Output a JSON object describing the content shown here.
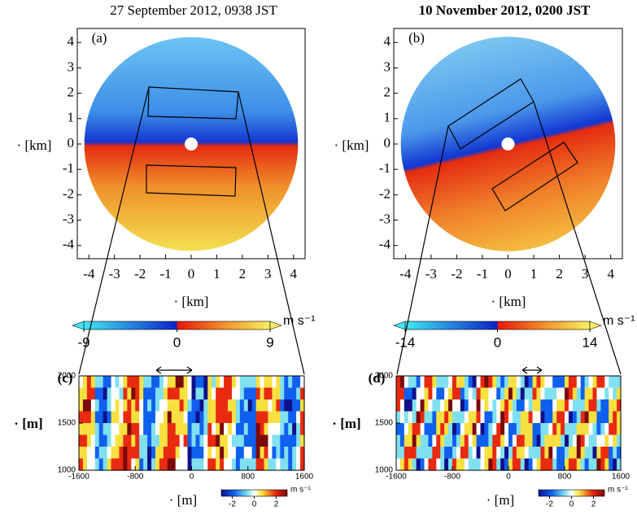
{
  "chart_data": [
    {
      "type": "image",
      "title": "27 September 2012, 0938 JST",
      "panel_label": "(a)",
      "xlabel": "· [km]",
      "ylabel": "· [km]",
      "xlim": [
        -4.2,
        4.2
      ],
      "ylim": [
        -4.2,
        4.2
      ],
      "xticks": [
        -4,
        -3,
        -2,
        -1,
        0,
        1,
        2,
        3,
        4
      ],
      "yticks": [
        -4,
        -3,
        -2,
        -1,
        0,
        1,
        2,
        3,
        4
      ],
      "colorbar": {
        "lim": [
          -9,
          9
        ],
        "ticks": [
          -9,
          0,
          9
        ],
        "unit": "m s⁻¹"
      }
    },
    {
      "type": "image",
      "title": "10 November 2012, 0200 JST",
      "panel_label": "(b)",
      "xlabel": "· [km]",
      "ylabel": "· [km]",
      "xlim": [
        -4.2,
        4.2
      ],
      "ylim": [
        -4.2,
        4.2
      ],
      "xticks": [
        -4,
        -3,
        -2,
        -1,
        0,
        1,
        2,
        3,
        4
      ],
      "yticks": [
        -4,
        -3,
        -2,
        -1,
        0,
        1,
        2,
        3,
        4
      ],
      "colorbar": {
        "lim": [
          -14,
          14
        ],
        "ticks": [
          -14,
          0,
          14
        ],
        "unit": "m s⁻¹"
      }
    },
    {
      "type": "image",
      "panel_label": "(c)",
      "xlabel": "· [m]",
      "ylabel": "· [m]",
      "xlim": [
        -1600,
        1600
      ],
      "ylim": [
        1000,
        2000
      ],
      "xticks": [
        -1600,
        -800,
        0,
        800,
        1600
      ],
      "yticks": [
        1000,
        1500,
        2000
      ],
      "colorbar": {
        "lim": [
          -3,
          3
        ],
        "ticks": [
          -2,
          0,
          2
        ],
        "unit": "m s⁻¹"
      }
    },
    {
      "type": "image",
      "panel_label": "(d)",
      "xlabel": "· [m]",
      "ylabel": "· [m]",
      "xlim": [
        -1600,
        1600
      ],
      "ylim": [
        1000,
        2000
      ],
      "xticks": [
        -1600,
        -800,
        0,
        800,
        1600
      ],
      "yticks": [
        1000,
        1500,
        2000
      ],
      "colorbar": {
        "lim": [
          -3,
          3
        ],
        "ticks": [
          -2,
          0,
          2
        ],
        "unit": "m s⁻¹"
      }
    }
  ]
}
